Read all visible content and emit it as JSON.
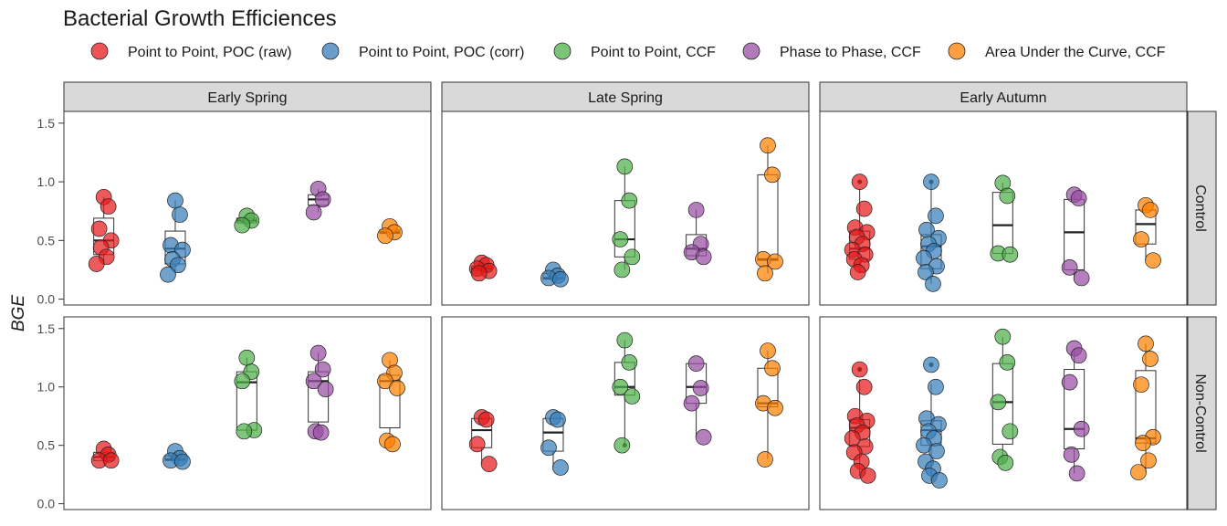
{
  "chart_data": {
    "type": "scatter",
    "subtype": "faceted box plot with jittered points",
    "title": "Bacterial Growth Efficiences",
    "ylabel": "BGE",
    "xlabel": "",
    "ylim": [
      -0.05,
      1.6
    ],
    "yticks": [
      "0.0",
      "0.5",
      "1.0",
      "1.5"
    ],
    "ytick_values": [
      0,
      0.5,
      1.0,
      1.5
    ],
    "legend_position": "top",
    "grid": false,
    "columns": [
      "Early Spring",
      "Late Spring",
      "Early Autumn"
    ],
    "rows": [
      "Control",
      "Non-Control"
    ],
    "series": [
      {
        "name": "Point to Point, POC (raw)",
        "color": "#E41A1C"
      },
      {
        "name": "Point to Point, POC (corr)",
        "color": "#377EB8"
      },
      {
        "name": "Point to Point, CCF",
        "color": "#4DAF4A"
      },
      {
        "name": "Phase to Phase, CCF",
        "color": "#984EA3"
      },
      {
        "name": "Area Under the Curve, CCF",
        "color": "#FF7F00"
      }
    ],
    "panels": [
      {
        "column": "Early Spring",
        "row": "Control",
        "groups": [
          {
            "box": [
              0.38,
              0.5,
              0.69
            ],
            "points": [
              0.87,
              0.79,
              0.6,
              0.5,
              0.44,
              0.36,
              0.3
            ]
          },
          {
            "box": [
              0.3,
              0.43,
              0.58
            ],
            "points": [
              0.84,
              0.72,
              0.46,
              0.42,
              0.34,
              0.29,
              0.21
            ]
          },
          {
            "box": [
              0.65,
              0.67,
              0.69
            ],
            "points": [
              0.71,
              0.67,
              0.63
            ]
          },
          {
            "box": [
              0.8,
              0.85,
              0.89
            ],
            "points": [
              0.94,
              0.85,
              0.74
            ]
          },
          {
            "box": [
              0.56,
              0.57,
              0.59
            ],
            "points": [
              0.62,
              0.57,
              0.54
            ]
          }
        ]
      },
      {
        "column": "Late Spring",
        "row": "Control",
        "groups": [
          {
            "box": [
              0.24,
              0.26,
              0.28
            ],
            "points": [
              0.31,
              0.29,
              0.26,
              0.24,
              0.22
            ]
          },
          {
            "box": [
              0.17,
              0.18,
              0.22
            ],
            "points": [
              0.25,
              0.2,
              0.18,
              0.17
            ]
          },
          {
            "box": [
              0.36,
              0.51,
              0.84
            ],
            "points": [
              1.13,
              0.84,
              0.51,
              0.36,
              0.25
            ]
          },
          {
            "box": [
              0.37,
              0.43,
              0.55
            ],
            "points": [
              0.76,
              0.47,
              0.4,
              0.36
            ]
          },
          {
            "box": [
              0.33,
              0.34,
              1.06
            ],
            "points": [
              1.31,
              1.06,
              0.34,
              0.32,
              0.22
            ]
          }
        ]
      },
      {
        "column": "Early Autumn",
        "row": "Control",
        "groups": [
          {
            "box": [
              0.34,
              0.43,
              0.58
            ],
            "points": [
              1.0,
              0.77,
              0.61,
              0.57,
              0.53,
              0.47,
              0.42,
              0.38,
              0.34,
              0.29,
              0.23
            ]
          },
          {
            "box": [
              0.26,
              0.45,
              0.55
            ],
            "points": [
              1.0,
              0.71,
              0.59,
              0.52,
              0.47,
              0.41,
              0.35,
              0.28,
              0.23,
              0.13
            ]
          },
          {
            "box": [
              0.39,
              0.63,
              0.91
            ],
            "points": [
              0.99,
              0.88,
              0.39,
              0.38
            ]
          },
          {
            "box": [
              0.25,
              0.57,
              0.85
            ],
            "points": [
              0.89,
              0.86,
              0.27,
              0.18
            ]
          },
          {
            "box": [
              0.47,
              0.64,
              0.76
            ],
            "points": [
              0.8,
              0.76,
              0.51,
              0.33
            ]
          }
        ]
      },
      {
        "column": "Early Spring",
        "row": "Non-Control",
        "groups": [
          {
            "box": [
              0.37,
              0.4,
              0.44
            ],
            "points": [
              0.47,
              0.42,
              0.37,
              0.37
            ]
          },
          {
            "box": [
              0.37,
              0.38,
              0.41
            ],
            "points": [
              0.45,
              0.39,
              0.37,
              0.36
            ]
          },
          {
            "box": [
              0.63,
              1.04,
              1.13
            ],
            "points": [
              1.25,
              1.13,
              1.05,
              0.63,
              0.62
            ]
          },
          {
            "box": [
              0.7,
              1.05,
              1.13
            ],
            "points": [
              1.29,
              1.15,
              1.05,
              0.98,
              0.62,
              0.61
            ]
          },
          {
            "box": [
              0.65,
              1.05,
              1.1
            ],
            "points": [
              1.23,
              1.12,
              1.05,
              0.99,
              0.54,
              0.51
            ]
          }
        ]
      },
      {
        "column": "Late Spring",
        "row": "Non-Control",
        "groups": [
          {
            "box": [
              0.48,
              0.63,
              0.73
            ],
            "points": [
              0.74,
              0.72,
              0.51,
              0.34
            ]
          },
          {
            "box": [
              0.45,
              0.61,
              0.73
            ],
            "points": [
              0.74,
              0.72,
              0.48,
              0.31
            ]
          },
          {
            "box": [
              0.93,
              1.0,
              1.21
            ],
            "points": [
              1.4,
              1.21,
              1.0,
              0.92,
              0.5
            ]
          },
          {
            "box": [
              0.86,
              1.0,
              1.2
            ],
            "points": [
              1.2,
              0.99,
              0.86,
              0.57
            ]
          },
          {
            "box": [
              0.83,
              0.86,
              1.16
            ],
            "points": [
              1.31,
              1.16,
              0.86,
              0.82,
              0.38
            ]
          }
        ]
      },
      {
        "column": "Early Autumn",
        "row": "Non-Control",
        "groups": [
          {
            "box": [
              0.49,
              0.65,
              0.72
            ],
            "points": [
              1.15,
              1.0,
              0.75,
              0.71,
              0.67,
              0.61,
              0.56,
              0.49,
              0.44,
              0.36,
              0.28,
              0.24
            ]
          },
          {
            "box": [
              0.5,
              0.63,
              0.71
            ],
            "points": [
              1.19,
              1.0,
              0.73,
              0.68,
              0.62,
              0.56,
              0.5,
              0.45,
              0.36,
              0.3,
              0.24,
              0.2
            ]
          },
          {
            "box": [
              0.51,
              0.87,
              1.2
            ],
            "points": [
              1.43,
              1.21,
              0.87,
              0.62,
              0.4,
              0.35
            ]
          },
          {
            "box": [
              0.47,
              0.64,
              1.15
            ],
            "points": [
              1.33,
              1.27,
              1.04,
              0.64,
              0.42,
              0.26
            ]
          },
          {
            "box": [
              0.52,
              0.56,
              1.14
            ],
            "points": [
              1.37,
              1.24,
              1.02,
              0.57,
              0.52,
              0.37,
              0.27
            ]
          }
        ]
      }
    ]
  }
}
